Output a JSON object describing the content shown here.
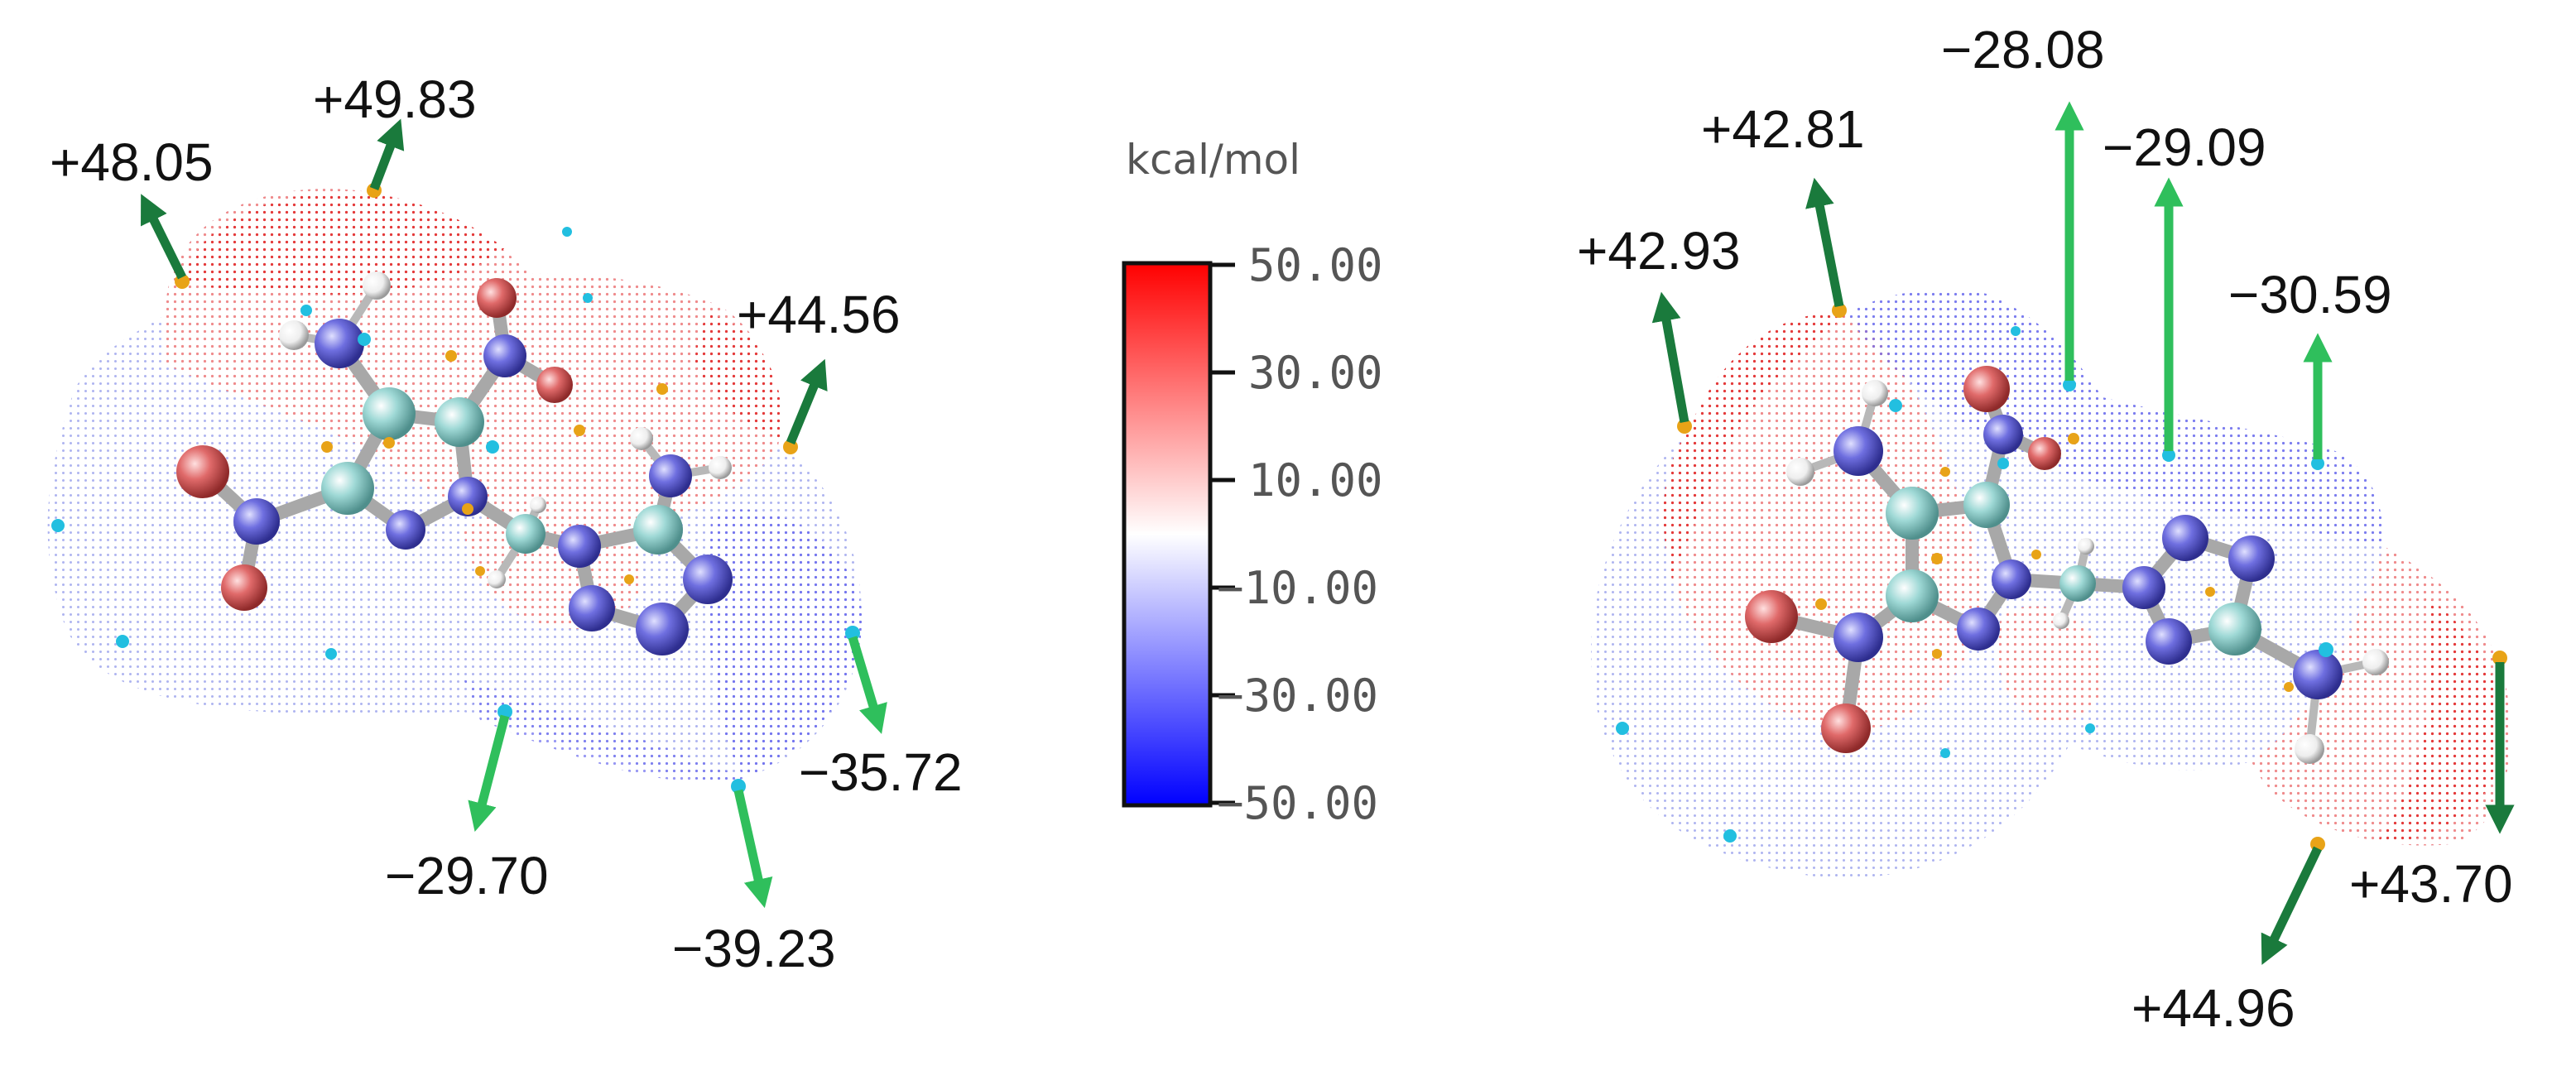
{
  "colorbar": {
    "unit": "kcal/mol",
    "ticks": [
      "50.00",
      "30.00",
      "10.00",
      "−10.00",
      "−30.00",
      "−50.00"
    ],
    "max": 50,
    "min": -50,
    "colors": {
      "max": "#ff0000",
      "mid": "#ffffff",
      "min": "#0000ff"
    }
  },
  "left_molecule": {
    "maxima": [
      "+48.05",
      "+49.83",
      "+44.56"
    ],
    "minima": [
      "−29.70",
      "−39.23",
      "−35.72"
    ]
  },
  "right_molecule": {
    "maxima": [
      "+42.93",
      "+42.81",
      "+43.70",
      "+44.96"
    ],
    "minima": [
      "−28.08",
      "−29.09",
      "−30.59"
    ]
  },
  "colors": {
    "positive_arrow": "#1a7a3c",
    "negative_arrow": "#2fbf5c",
    "max_point": "#e8a317",
    "min_point": "#22bfe0",
    "carbon": "#9fd9d6",
    "nitrogen": "#6f6fe0",
    "oxygen": "#e06a6a",
    "hydrogen": "#f2f2f2"
  }
}
